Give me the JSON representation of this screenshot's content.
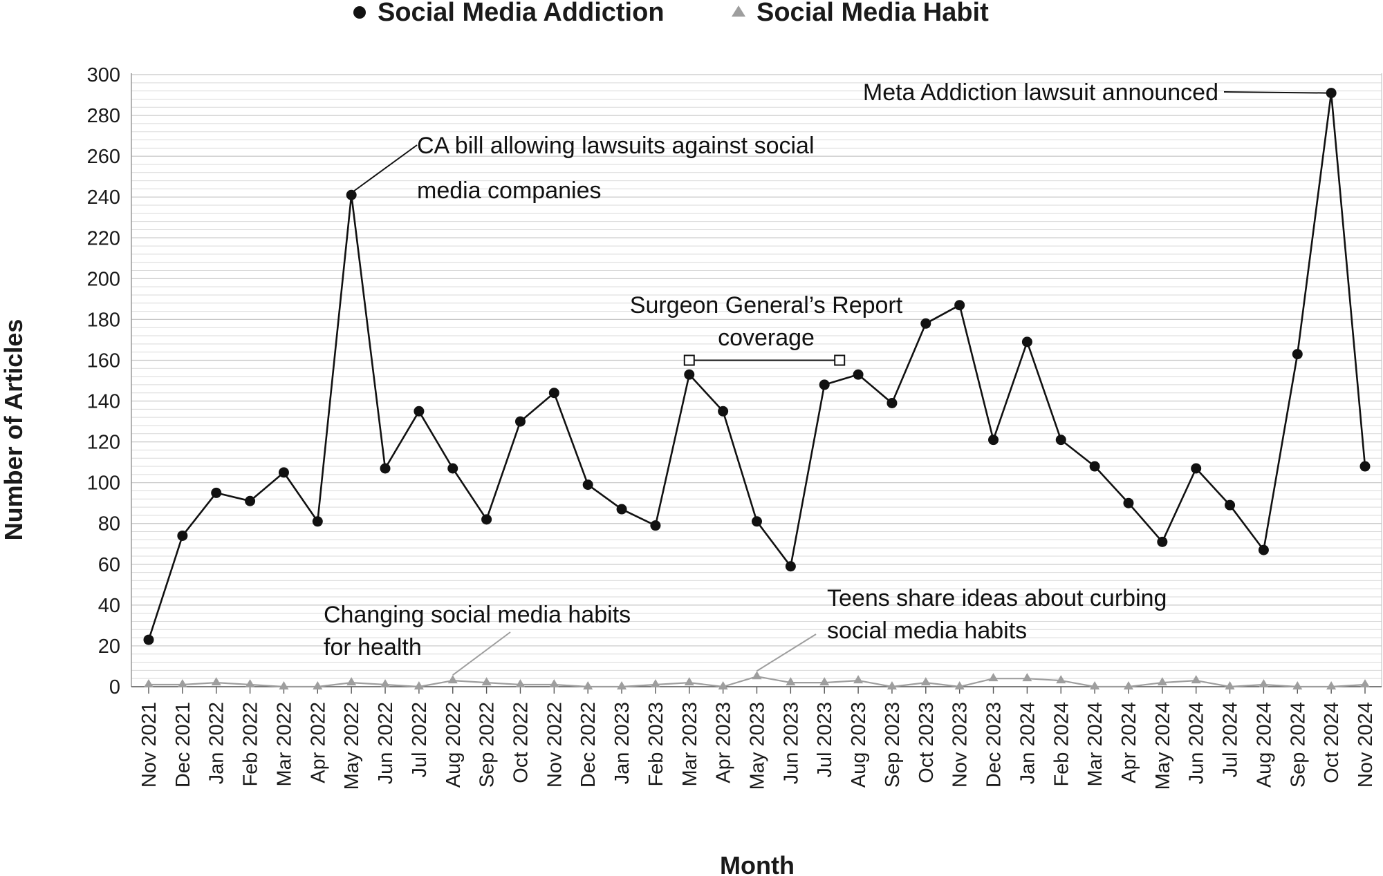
{
  "chart_data": {
    "type": "line",
    "xlabel": "Month",
    "ylabel": "Number of Articles",
    "ylim": [
      0,
      300
    ],
    "y_ticks": [
      0,
      20,
      40,
      60,
      80,
      100,
      120,
      140,
      160,
      180,
      200,
      220,
      240,
      260,
      280,
      300
    ],
    "grid": true,
    "legend_position": "top-center",
    "categories": [
      "Nov 2021",
      "Dec 2021",
      "Jan 2022",
      "Feb 2022",
      "Mar 2022",
      "Apr 2022",
      "May 2022",
      "Jun 2022",
      "Jul 2022",
      "Aug 2022",
      "Sep 2022",
      "Oct 2022",
      "Nov 2022",
      "Dec 2022",
      "Jan 2023",
      "Feb 2023",
      "Mar 2023",
      "Apr 2023",
      "May 2023",
      "Jun 2023",
      "Jul 2023",
      "Aug 2023",
      "Sep 2023",
      "Oct 2023",
      "Nov 2023",
      "Dec 2023",
      "Jan 2024",
      "Feb 2024",
      "Mar 2024",
      "Apr 2024",
      "May 2024",
      "Jun 2024",
      "Jul 2024",
      "Aug 2024",
      "Sep 2024",
      "Oct 2024",
      "Nov 2024"
    ],
    "series": [
      {
        "name": "Social Media Addiction",
        "marker": "circle",
        "color": "#111111",
        "values": [
          23,
          74,
          95,
          91,
          105,
          81,
          241,
          107,
          135,
          107,
          82,
          130,
          144,
          99,
          87,
          79,
          153,
          135,
          81,
          59,
          148,
          153,
          139,
          178,
          187,
          121,
          169,
          121,
          108,
          90,
          71,
          107,
          89,
          67,
          163,
          291,
          108
        ]
      },
      {
        "name": "Social Media Habit",
        "marker": "triangle",
        "color": "#9e9e9e",
        "values": [
          1,
          1,
          2,
          1,
          0,
          0,
          2,
          1,
          0,
          3,
          2,
          1,
          1,
          0,
          0,
          1,
          2,
          0,
          5,
          2,
          2,
          3,
          0,
          2,
          0,
          4,
          4,
          3,
          0,
          0,
          2,
          3,
          0,
          1,
          0,
          0,
          1
        ]
      }
    ],
    "annotations": [
      {
        "lines": [
          "CA bill allowing lawsuits against social",
          "media companies"
        ],
        "target": "May 2022",
        "series": "Social Media Addiction"
      },
      {
        "lines": [
          "Meta Addiction lawsuit announced"
        ],
        "target": "Oct 2024",
        "series": "Social Media Addiction"
      },
      {
        "lines": [
          "Surgeon General’s Report",
          "coverage"
        ],
        "range": [
          "Mar 2023",
          "Jul 2023"
        ],
        "value": 160
      },
      {
        "lines": [
          "Changing social media habits",
          "for health"
        ],
        "target": "Aug 2022",
        "series": "Social Media Habit"
      },
      {
        "lines": [
          "Teens share ideas about curbing",
          "social media habits"
        ],
        "target": "May 2023",
        "series": "Social Media Habit"
      }
    ]
  }
}
